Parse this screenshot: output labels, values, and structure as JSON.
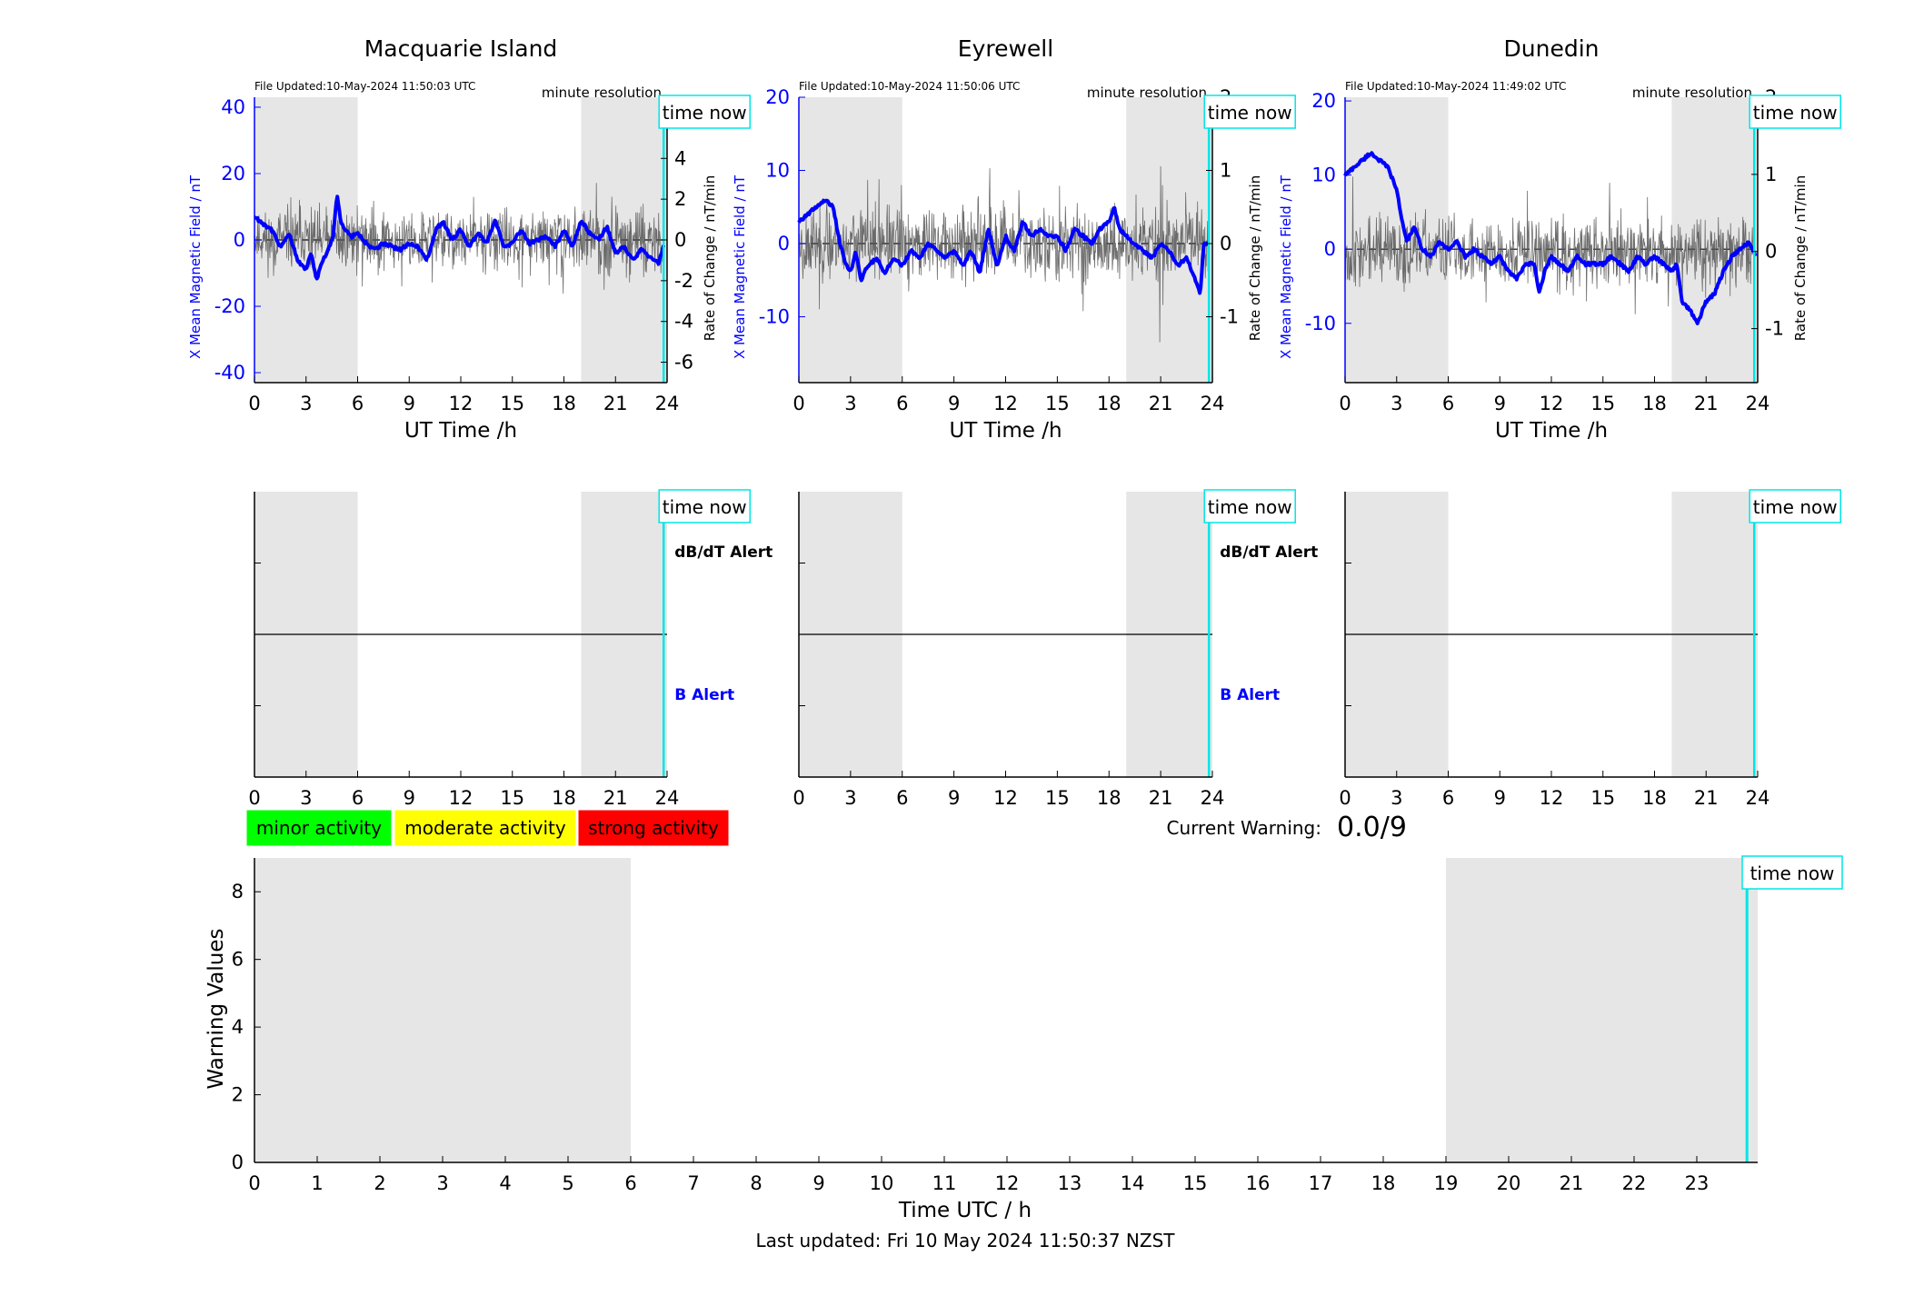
{
  "colors": {
    "shade": "#e6e6e6",
    "blue_series": "#0000ff",
    "rate_series": "#555555",
    "time_now": "#00e5e5",
    "minor": "#00ff00",
    "moderate": "#ffff00",
    "strong": "#ff0000"
  },
  "chart_data": [
    {
      "type": "line",
      "station": "Macquarie Island",
      "file_updated": "File Updated:10-May-2024 11:50:03 UTC",
      "resolution": "minute resolution",
      "time_now_label": "time now",
      "xlabel": "UT Time /h",
      "ylabel_left": "X Mean Magnetic Field / nT",
      "ylabel_right": "Rate of Change / nT/min",
      "xlim": [
        0,
        24
      ],
      "ylim_left": [
        -43,
        43
      ],
      "ylim_right": [
        -7,
        7
      ],
      "x_ticks": [
        "0",
        "3",
        "6",
        "9",
        "12",
        "15",
        "18",
        "21",
        "24"
      ],
      "y_ticks_left": [
        "-40",
        "-20",
        "0",
        "20",
        "40"
      ],
      "y_ticks_right": [
        "-6",
        "-4",
        "-2",
        "0",
        "2",
        "4",
        "6"
      ],
      "night_shading": [
        [
          0,
          6
        ],
        [
          19,
          24
        ]
      ],
      "time_now": 23.8,
      "grid": false,
      "series": [
        {
          "axis": "left",
          "style": "thick-blue",
          "x": [
            0,
            0.5,
            1,
            1.5,
            2,
            2.5,
            3,
            3.3,
            3.6,
            4,
            4.3,
            4.6,
            4.8,
            5,
            5.3,
            5.6,
            6,
            6.5,
            7,
            7.5,
            8,
            8.5,
            9,
            9.5,
            10,
            10.3,
            10.6,
            11,
            11.5,
            12,
            12.5,
            13,
            13.5,
            14,
            14.5,
            15,
            15.5,
            16,
            16.5,
            17,
            17.5,
            18,
            18.5,
            19,
            19.5,
            20,
            20.5,
            21,
            21.5,
            22,
            22.5,
            23,
            23.5,
            23.8
          ],
          "values": [
            7,
            5,
            3,
            -2,
            2,
            -6,
            -9,
            -4,
            -12,
            -6,
            -3,
            2,
            14,
            6,
            3,
            1,
            2,
            -1,
            -3,
            -1,
            -2,
            -3,
            -1,
            -2,
            -6,
            -2,
            4,
            5,
            0,
            3,
            -2,
            2,
            -1,
            6,
            -2,
            -1,
            3,
            -1,
            0,
            1,
            -2,
            3,
            -2,
            6,
            2,
            0,
            4,
            -4,
            -2,
            -6,
            -3,
            -5,
            -7,
            -2
          ]
        },
        {
          "axis": "right",
          "style": "thin-gray",
          "generated": "noise",
          "amplitude": 1.6,
          "seed": 11
        }
      ]
    },
    {
      "type": "line",
      "station": "Eyrewell",
      "file_updated": "File Updated:10-May-2024 11:50:06 UTC",
      "resolution": "minute resolution",
      "time_now_label": "time now",
      "xlabel": "UT Time /h",
      "ylabel_left": "X Mean Magnetic Field / nT",
      "ylabel_right": "Rate of Change / nT/min",
      "xlim": [
        0,
        24
      ],
      "ylim_left": [
        -19,
        20
      ],
      "ylim_right": [
        -1.9,
        2
      ],
      "x_ticks": [
        "0",
        "3",
        "6",
        "9",
        "12",
        "15",
        "18",
        "21",
        "24"
      ],
      "y_ticks_left": [
        "-10",
        "0",
        "10",
        "20"
      ],
      "y_ticks_right": [
        "-1",
        "0",
        "1",
        "2"
      ],
      "night_shading": [
        [
          0,
          6
        ],
        [
          19,
          24
        ]
      ],
      "time_now": 23.8,
      "grid": false,
      "series": [
        {
          "axis": "left",
          "style": "thick-blue",
          "x": [
            0,
            0.5,
            1,
            1.5,
            2,
            2.3,
            2.6,
            3,
            3.3,
            3.6,
            4,
            4.5,
            5,
            5.5,
            6,
            6.5,
            7,
            7.5,
            8,
            8.5,
            9,
            9.5,
            10,
            10.5,
            11,
            11.5,
            12,
            12.5,
            13,
            13.5,
            14,
            14.5,
            15,
            15.5,
            16,
            16.5,
            17,
            17.5,
            18,
            18.3,
            18.6,
            19,
            19.5,
            20,
            20.5,
            21,
            21.5,
            22,
            22.5,
            23,
            23.3,
            23.5,
            23.8
          ],
          "values": [
            3,
            4,
            5,
            6,
            5,
            1,
            -2,
            -4,
            -1,
            -5,
            -3,
            -2,
            -4,
            -2,
            -3,
            -1,
            -2,
            0,
            -1,
            -2,
            -1,
            -3,
            -1,
            -4,
            2,
            -3,
            1,
            -1,
            3,
            1,
            2,
            1,
            1,
            -1,
            2,
            1,
            0,
            2,
            3,
            5,
            2,
            1,
            0,
            -1,
            -2,
            0,
            -1,
            -3,
            -2,
            -5,
            -7,
            0,
            0
          ]
        },
        {
          "axis": "right",
          "style": "thin-gray",
          "generated": "noise",
          "amplitude": 0.55,
          "seed": 23
        }
      ]
    },
    {
      "type": "line",
      "station": "Dunedin",
      "file_updated": "File Updated:10-May-2024 11:49:02 UTC",
      "resolution": "minute resolution",
      "time_now_label": "time now",
      "xlabel": "UT Time /h",
      "ylabel_left": "X Mean Magnetic Field / nT",
      "ylabel_right": "Rate of Change / nT/min",
      "xlim": [
        0,
        24
      ],
      "ylim_left": [
        -18,
        20.5
      ],
      "ylim_right": [
        -1.7,
        2
      ],
      "x_ticks": [
        "0",
        "3",
        "6",
        "9",
        "12",
        "15",
        "18",
        "21",
        "24"
      ],
      "y_ticks_left": [
        "-10",
        "0",
        "10",
        "20"
      ],
      "y_ticks_right": [
        "-1",
        "0",
        "1",
        "2"
      ],
      "night_shading": [
        [
          0,
          6
        ],
        [
          19,
          24
        ]
      ],
      "time_now": 23.8,
      "grid": false,
      "series": [
        {
          "axis": "left",
          "style": "thick-blue",
          "x": [
            0,
            0.5,
            1,
            1.5,
            2,
            2.5,
            3,
            3.3,
            3.6,
            4,
            4.5,
            5,
            5.5,
            6,
            6.5,
            7,
            7.5,
            8,
            8.5,
            9,
            9.5,
            10,
            10.5,
            11,
            11.3,
            11.6,
            12,
            12.5,
            13,
            13.5,
            14,
            14.5,
            15,
            15.5,
            16,
            16.5,
            17,
            17.5,
            18,
            18.5,
            19,
            19.3,
            19.6,
            20,
            20.5,
            21,
            21.5,
            22,
            22.5,
            23,
            23.5,
            23.9
          ],
          "values": [
            10,
            11,
            12,
            13,
            12,
            11,
            8,
            4,
            1,
            3,
            0,
            -1,
            1,
            0,
            1,
            -1,
            0,
            -1,
            -2,
            -1,
            -3,
            -4,
            -2,
            -2,
            -6,
            -3,
            -1,
            -2,
            -3,
            -1,
            -2,
            -2,
            -2,
            -1,
            -2,
            -3,
            -1,
            -2,
            -1,
            -2,
            -3,
            -2,
            -7,
            -8,
            -10,
            -7,
            -6,
            -3,
            -1,
            0,
            1,
            -1
          ]
        },
        {
          "axis": "right",
          "style": "thin-gray",
          "generated": "noise",
          "amplitude": 0.5,
          "seed": 37
        }
      ]
    },
    {
      "type": "line",
      "panel": "alert",
      "station": "Macquarie Island",
      "time_now_label": "time now",
      "dbdt_alert_label": "dB/dT Alert",
      "b_alert_label": "B Alert",
      "xlim": [
        0,
        24
      ],
      "x_ticks": [
        "0",
        "3",
        "6",
        "9",
        "12",
        "15",
        "18",
        "21",
        "24"
      ],
      "night_shading": [
        [
          0,
          6
        ],
        [
          19,
          24
        ]
      ],
      "time_now": 23.8,
      "baseline": 0
    },
    {
      "type": "line",
      "panel": "alert",
      "station": "Eyrewell",
      "time_now_label": "time now",
      "dbdt_alert_label": "dB/dT Alert",
      "b_alert_label": "B Alert",
      "xlim": [
        0,
        24
      ],
      "x_ticks": [
        "0",
        "3",
        "6",
        "9",
        "12",
        "15",
        "18",
        "21",
        "24"
      ],
      "night_shading": [
        [
          0,
          6
        ],
        [
          19,
          24
        ]
      ],
      "time_now": 23.8,
      "baseline": 0
    },
    {
      "type": "line",
      "panel": "alert",
      "station": "Dunedin",
      "time_now_label": "time now",
      "dbdt_alert_label": "",
      "b_alert_label": "",
      "xlim": [
        0,
        24
      ],
      "x_ticks": [
        "0",
        "3",
        "6",
        "9",
        "12",
        "15",
        "18",
        "21",
        "24"
      ],
      "night_shading": [
        [
          0,
          6
        ],
        [
          19,
          24
        ]
      ],
      "time_now": 23.8,
      "baseline": 0
    },
    {
      "type": "line",
      "panel": "warning",
      "legend": [
        {
          "label": "minor activity",
          "color": "#00ff00"
        },
        {
          "label": "moderate activity",
          "color": "#ffff00"
        },
        {
          "label": "strong activity",
          "color": "#ff0000"
        }
      ],
      "current_warning_label": "Current Warning:",
      "current_warning_value": "0.0/9",
      "time_now_label": "time now",
      "xlabel": "Time UTC / h",
      "ylabel": "Warning Values",
      "xlim": [
        0,
        24
      ],
      "ylim": [
        0,
        9
      ],
      "x_ticks": [
        "0",
        "1",
        "2",
        "3",
        "4",
        "5",
        "6",
        "7",
        "8",
        "9",
        "10",
        "11",
        "12",
        "13",
        "14",
        "15",
        "16",
        "17",
        "18",
        "19",
        "20",
        "21",
        "22",
        "23"
      ],
      "y_ticks": [
        "0",
        "2",
        "4",
        "6",
        "8"
      ],
      "night_shading": [
        [
          0,
          6
        ],
        [
          19,
          24
        ]
      ],
      "time_now": 23.8,
      "last_updated": "Last updated: Fri 10 May 2024 11:50:37 NZST"
    }
  ]
}
